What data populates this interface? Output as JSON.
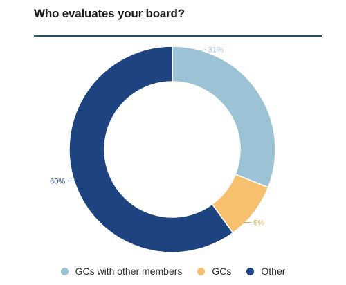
{
  "title": "Who evaluates your board?",
  "chart_data": {
    "type": "pie",
    "donut": true,
    "categories": [
      "GCs with other members",
      "GCs",
      "Other"
    ],
    "values": [
      31,
      9,
      60
    ],
    "value_labels": [
      "31%",
      "9%",
      "60%"
    ],
    "colors": [
      "#9cc3d5",
      "#f6c06e",
      "#1d4480"
    ],
    "title": "Who evaluates your board?",
    "legend_placement": "bottom-center"
  }
}
